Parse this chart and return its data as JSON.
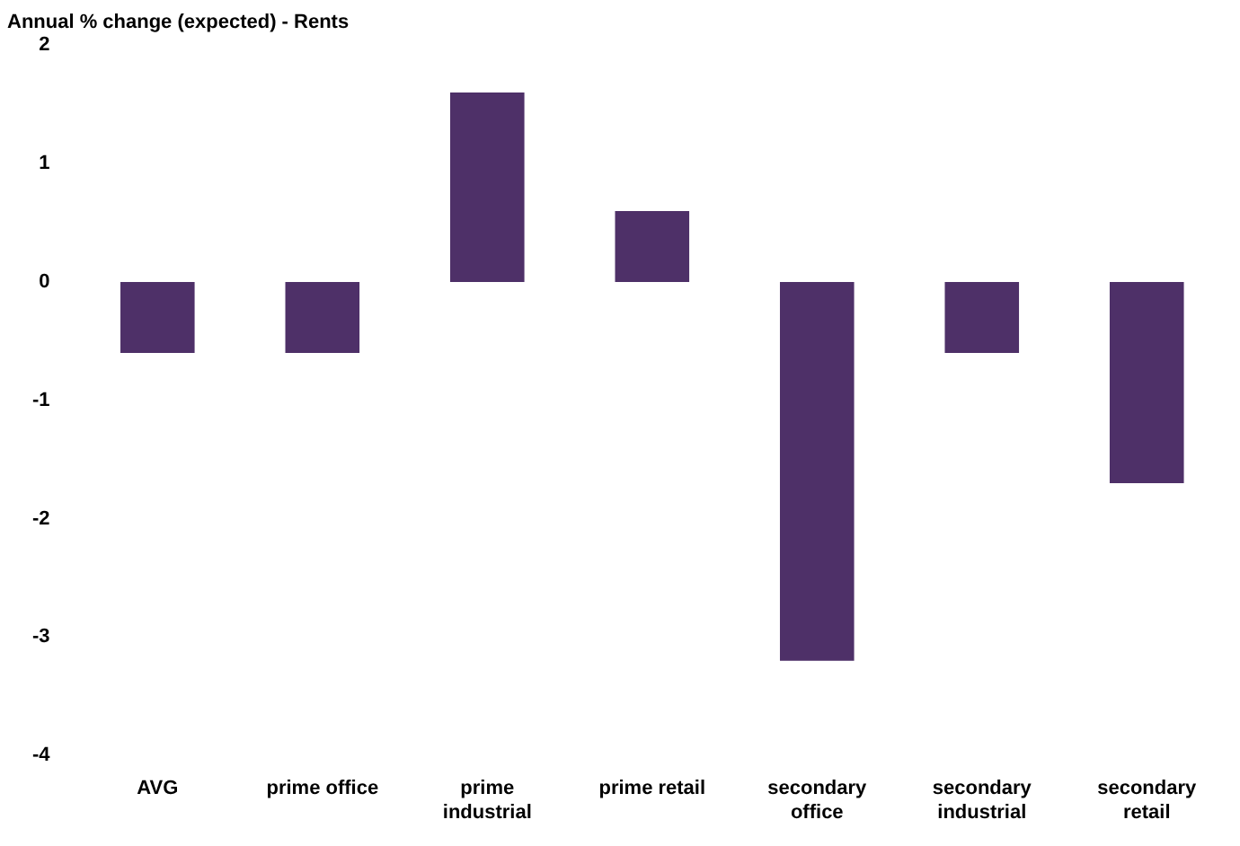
{
  "chart_data": {
    "type": "bar",
    "title": "Annual % change (expected) - Rents",
    "categories": [
      "AVG",
      "prime office",
      "prime industrial",
      "prime retail",
      "secondary office",
      "secondary industrial",
      "secondary retail"
    ],
    "values": [
      -0.6,
      -0.6,
      1.6,
      0.6,
      -3.2,
      -0.6,
      -1.7
    ],
    "color": "#4e3068",
    "ylim": [
      -4,
      2
    ],
    "yticks": [
      -4,
      -3,
      -2,
      -1,
      0,
      1,
      2
    ],
    "grid": false,
    "legend": false
  }
}
